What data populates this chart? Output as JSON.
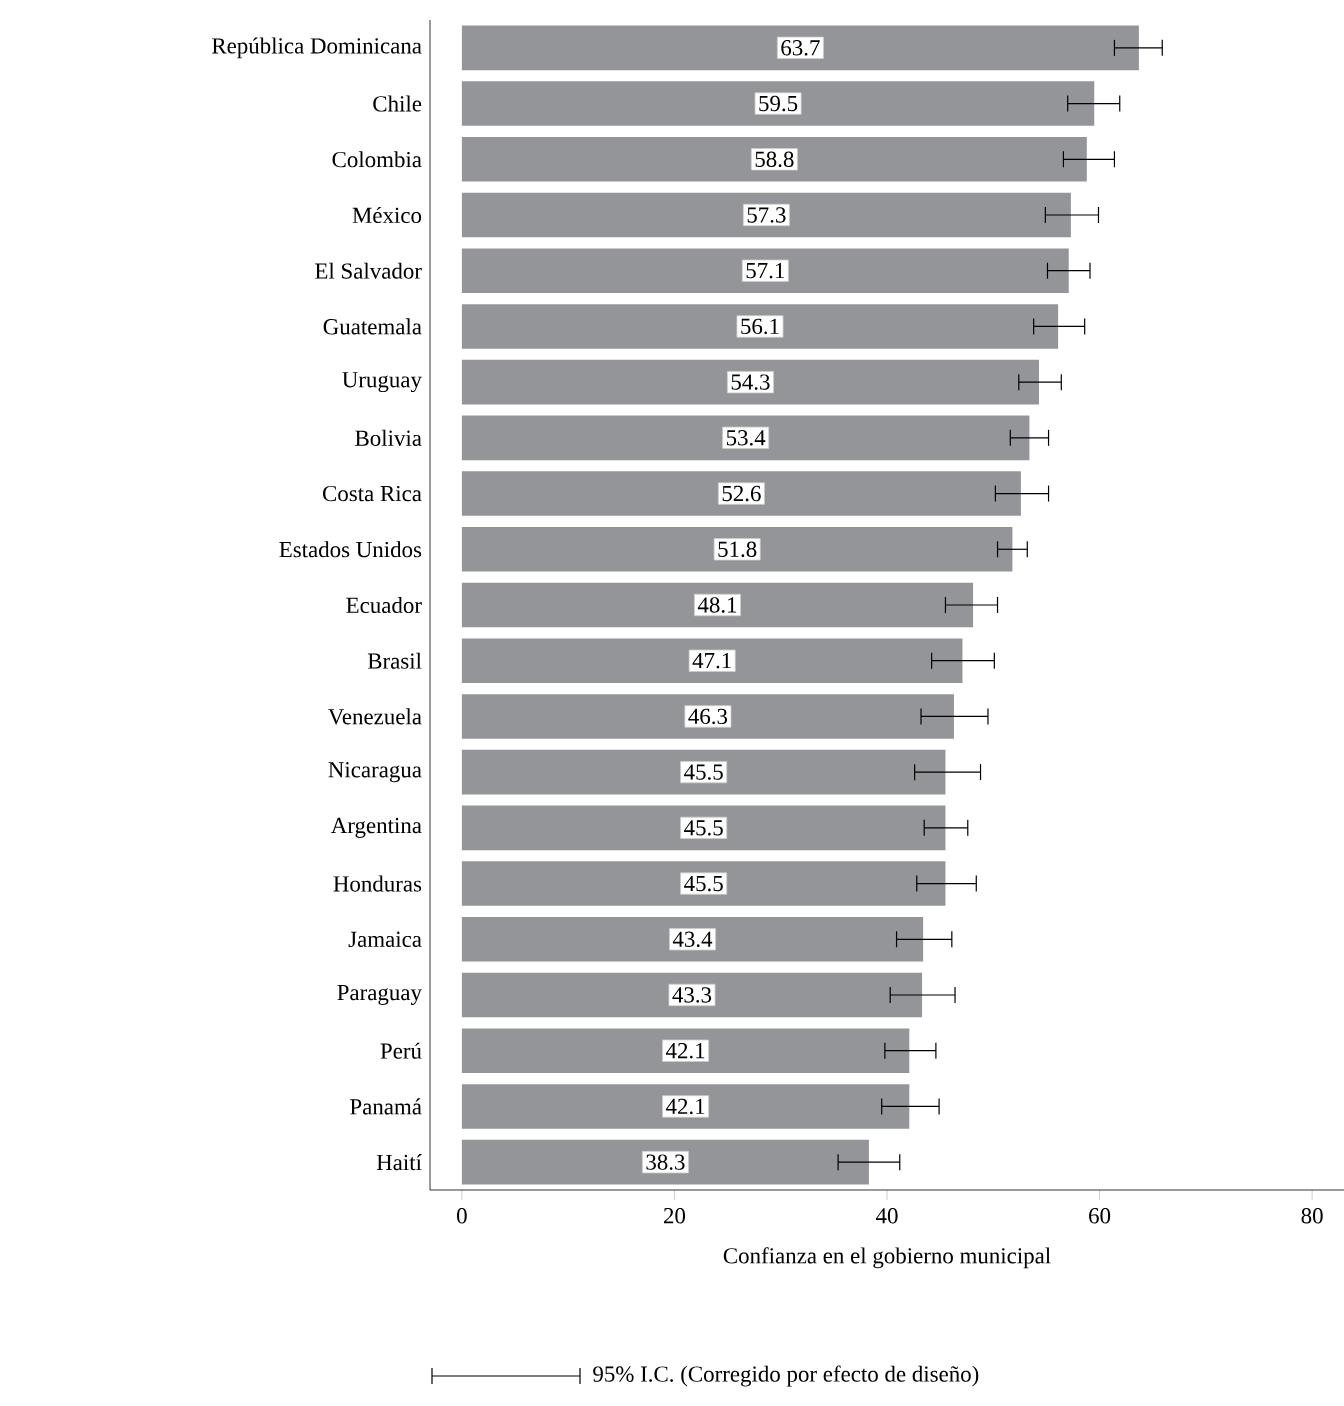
{
  "chart_data": {
    "type": "bar",
    "orientation": "horizontal",
    "xlabel": "Confianza en el gobierno municipal",
    "categories": [
      "República Dominicana",
      "Chile",
      "Colombia",
      "México",
      "El Salvador",
      "Guatemala",
      "Uruguay",
      "Bolivia",
      "Costa Rica",
      "Estados Unidos",
      "Ecuador",
      "Brasil",
      "Venezuela",
      "Nicaragua",
      "Argentina",
      "Honduras",
      "Jamaica",
      "Paraguay",
      "Perú",
      "Panamá",
      "Haití"
    ],
    "values": [
      63.7,
      59.5,
      58.8,
      57.3,
      57.1,
      56.1,
      54.3,
      53.4,
      52.6,
      51.8,
      48.1,
      47.1,
      46.3,
      45.5,
      45.5,
      45.5,
      43.4,
      43.3,
      42.1,
      42.1,
      38.3
    ],
    "errors": [
      [
        61.4,
        65.9
      ],
      [
        57.0,
        61.9
      ],
      [
        56.6,
        61.4
      ],
      [
        54.9,
        59.9
      ],
      [
        55.1,
        59.1
      ],
      [
        53.8,
        58.6
      ],
      [
        52.4,
        56.4
      ],
      [
        51.6,
        55.2
      ],
      [
        50.2,
        55.2
      ],
      [
        50.4,
        53.2
      ],
      [
        45.5,
        50.4
      ],
      [
        44.2,
        50.1
      ],
      [
        43.2,
        49.5
      ],
      [
        42.6,
        48.8
      ],
      [
        43.5,
        47.6
      ],
      [
        42.8,
        48.4
      ],
      [
        40.9,
        46.1
      ],
      [
        40.3,
        46.4
      ],
      [
        39.8,
        44.6
      ],
      [
        39.5,
        44.9
      ],
      [
        35.4,
        41.2
      ]
    ],
    "color": "#939598",
    "data_labels": true,
    "grid": false,
    "xlim": [
      -3,
      83
    ],
    "xticks": [
      0,
      20,
      40,
      60,
      80
    ],
    "annotations": [
      "95% I.C. (Corregido por efecto de diseño)"
    ]
  }
}
